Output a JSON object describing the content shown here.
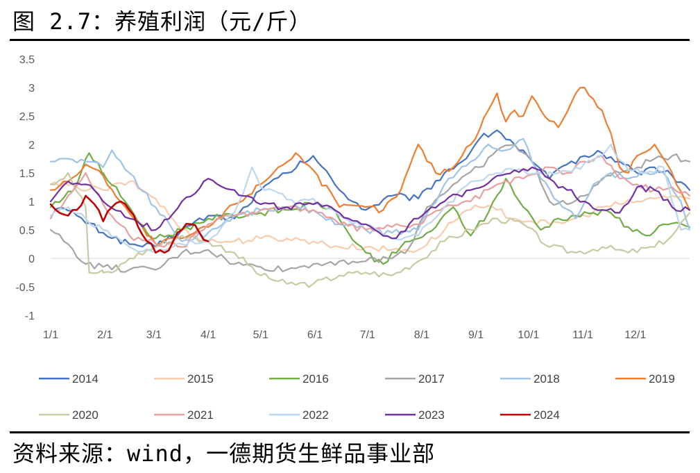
{
  "figure_title": "图 2.7：养殖利润（元/斤）",
  "source_note": "资料来源：wind，一德期货生鲜品事业部",
  "chart_data": {
    "type": "line",
    "title": "养殖利润（元/斤）",
    "xlabel": "",
    "ylabel": "",
    "ylim": [
      -1,
      3.5
    ],
    "yticks": [
      3.5,
      3,
      2.5,
      2,
      1.5,
      1,
      0.5,
      0,
      -0.5,
      -1
    ],
    "ytick_labels": [
      "3.5",
      "3",
      "2.5",
      "2",
      "1.5",
      "1",
      "0.5",
      "0",
      "-0.5",
      "-1"
    ],
    "xlim": [
      0,
      365
    ],
    "xticks": [
      0,
      31,
      59,
      90,
      120,
      151,
      181,
      212,
      243,
      273,
      304,
      334
    ],
    "xtick_labels": [
      "1/1",
      "2/1",
      "3/1",
      "4/1",
      "5/1",
      "6/1",
      "7/1",
      "8/1",
      "9/1",
      "10/1",
      "11/1",
      "12/1"
    ],
    "grid": false,
    "legend_position": "bottom",
    "series": [
      {
        "name": "2014",
        "color": "#4472C4",
        "x": [
          0,
          15,
          30,
          45,
          60,
          75,
          90,
          105,
          120,
          135,
          150,
          165,
          180,
          195,
          210,
          225,
          235,
          245,
          255,
          265,
          275,
          285,
          295,
          305,
          315,
          325,
          335,
          345,
          355,
          365
        ],
        "values": [
          0.95,
          0.75,
          0.45,
          0.25,
          0.2,
          0.5,
          0.75,
          0.7,
          1.2,
          1.5,
          1.8,
          1.2,
          0.85,
          1.1,
          1.05,
          1.5,
          1.7,
          2.1,
          2.25,
          2.0,
          1.7,
          1.4,
          1.65,
          1.8,
          1.85,
          1.7,
          1.5,
          1.6,
          1.45,
          1.2
        ]
      },
      {
        "name": "2015",
        "color": "#F8CBAD",
        "x": [
          0,
          15,
          30,
          45,
          60,
          75,
          90,
          105,
          120,
          135,
          150,
          165,
          180,
          195,
          210,
          225,
          235,
          245,
          255,
          265,
          275,
          285,
          295,
          305,
          315,
          325,
          335,
          345,
          355,
          365
        ],
        "values": [
          1.3,
          1.25,
          1.2,
          1.35,
          1.05,
          0.5,
          0.3,
          0.3,
          0.35,
          0.35,
          0.3,
          0.2,
          0.2,
          0.15,
          0.15,
          0.5,
          0.8,
          0.9,
          0.85,
          0.7,
          0.65,
          0.6,
          0.65,
          0.75,
          0.9,
          0.95,
          1.0,
          1.05,
          1.1,
          1.05
        ]
      },
      {
        "name": "2016",
        "color": "#70AD47",
        "x": [
          0,
          15,
          22,
          30,
          45,
          55,
          60,
          75,
          90,
          105,
          120,
          135,
          150,
          160,
          170,
          180,
          190,
          200,
          210,
          220,
          230,
          240,
          250,
          260,
          270,
          280,
          290,
          300,
          310,
          320,
          330,
          340,
          350,
          365
        ],
        "values": [
          0.9,
          1.3,
          1.85,
          1.5,
          0.9,
          0.45,
          0.35,
          0.5,
          0.7,
          0.75,
          0.8,
          0.85,
          0.95,
          0.9,
          0.45,
          0.1,
          -0.1,
          0.2,
          0.35,
          0.55,
          0.9,
          0.4,
          0.8,
          1.4,
          0.9,
          0.5,
          0.7,
          0.75,
          0.8,
          0.8,
          0.55,
          0.4,
          0.6,
          0.55
        ]
      },
      {
        "name": "2017",
        "color": "#A5A5A5",
        "x": [
          0,
          10,
          20,
          30,
          45,
          60,
          75,
          90,
          105,
          120,
          135,
          150,
          165,
          180,
          195,
          205,
          215,
          230,
          245,
          255,
          265,
          275,
          285,
          295,
          305,
          315,
          325,
          335,
          345,
          355,
          365
        ],
        "values": [
          0.5,
          0.25,
          -0.1,
          -0.15,
          -0.2,
          -0.2,
          0.1,
          0.15,
          -0.1,
          -0.15,
          -0.2,
          -0.1,
          -0.05,
          -0.05,
          0.0,
          0.2,
          0.9,
          1.3,
          1.6,
          1.9,
          2.0,
          1.7,
          1.0,
          0.95,
          1.1,
          1.4,
          1.5,
          1.6,
          1.75,
          1.8,
          1.7
        ]
      },
      {
        "name": "2018",
        "color": "#9DC3E6",
        "x": [
          0,
          10,
          20,
          30,
          35,
          45,
          60,
          75,
          90,
          105,
          120,
          135,
          150,
          165,
          180,
          195,
          210,
          225,
          240,
          250,
          260,
          270,
          280,
          290,
          300,
          310,
          320,
          330,
          340,
          350,
          360,
          365
        ],
        "values": [
          1.7,
          1.75,
          1.7,
          1.6,
          1.9,
          1.5,
          0.9,
          0.3,
          0.45,
          0.75,
          0.85,
          0.9,
          0.85,
          0.6,
          0.5,
          0.45,
          0.5,
          1.3,
          1.7,
          2.0,
          1.9,
          2.1,
          1.4,
          1.0,
          0.7,
          1.3,
          1.5,
          1.4,
          1.5,
          1.5,
          1.0,
          0.5
        ]
      },
      {
        "name": "2019",
        "color": "#ED7D31",
        "x": [
          0,
          10,
          20,
          30,
          45,
          60,
          75,
          90,
          105,
          120,
          130,
          140,
          150,
          165,
          180,
          190,
          200,
          210,
          220,
          230,
          240,
          250,
          255,
          260,
          265,
          270,
          275,
          280,
          290,
          300,
          305,
          310,
          315,
          320,
          325,
          330,
          335,
          345,
          355,
          365
        ],
        "values": [
          1.2,
          1.35,
          1.65,
          1.45,
          0.8,
          0.25,
          0.35,
          0.55,
          0.95,
          1.3,
          1.6,
          1.85,
          1.55,
          0.9,
          0.9,
          0.85,
          1.2,
          2.0,
          1.5,
          1.6,
          2.0,
          2.6,
          2.9,
          2.4,
          2.6,
          2.5,
          2.85,
          2.6,
          2.3,
          2.9,
          3.0,
          2.8,
          2.6,
          2.2,
          1.6,
          1.5,
          1.8,
          2.0,
          1.5,
          0.85
        ]
      },
      {
        "name": "2020",
        "color": "#C9C9A3",
        "x": [
          0,
          10,
          20,
          22,
          30,
          35,
          45,
          60,
          75,
          90,
          105,
          120,
          135,
          150,
          165,
          180,
          195,
          210,
          225,
          240,
          255,
          270,
          285,
          300,
          315,
          330,
          345,
          355,
          365
        ],
        "values": [
          1.3,
          1.5,
          0.9,
          -0.25,
          -0.25,
          -0.25,
          0.0,
          0.2,
          0.4,
          0.3,
          0.1,
          -0.3,
          -0.45,
          -0.45,
          -0.3,
          -0.25,
          -0.3,
          -0.05,
          0.3,
          0.5,
          0.7,
          0.6,
          0.2,
          0.1,
          0.2,
          0.1,
          0.2,
          0.4,
          0.8
        ]
      },
      {
        "name": "2021",
        "color": "#E6A0A0",
        "x": [
          0,
          10,
          20,
          30,
          45,
          60,
          75,
          90,
          105,
          120,
          135,
          150,
          165,
          180,
          195,
          210,
          225,
          240,
          255,
          270,
          285,
          295,
          305,
          315,
          325,
          335,
          345,
          355,
          365
        ],
        "values": [
          0.7,
          1.1,
          1.5,
          0.95,
          0.4,
          0.25,
          0.2,
          0.6,
          0.75,
          0.85,
          0.9,
          0.85,
          0.6,
          0.5,
          0.55,
          0.6,
          0.9,
          1.0,
          1.3,
          1.4,
          1.6,
          1.5,
          1.7,
          1.8,
          1.4,
          1.3,
          1.2,
          1.25,
          1.1
        ]
      },
      {
        "name": "2022",
        "color": "#BDD7EE",
        "x": [
          0,
          10,
          20,
          30,
          45,
          60,
          75,
          90,
          105,
          115,
          120,
          130,
          140,
          150,
          165,
          180,
          195,
          210,
          225,
          240,
          255,
          270,
          280,
          290,
          300,
          310,
          320,
          330,
          340,
          350,
          360,
          365
        ],
        "values": [
          0.75,
          0.9,
          0.7,
          0.5,
          0.2,
          0.1,
          0.25,
          0.3,
          0.8,
          1.6,
          1.25,
          1.15,
          0.95,
          1.05,
          0.75,
          0.6,
          0.35,
          0.4,
          0.9,
          1.35,
          1.5,
          1.55,
          1.5,
          1.5,
          1.6,
          1.7,
          2.0,
          1.55,
          1.5,
          1.6,
          0.5,
          0.5
        ]
      },
      {
        "name": "2023",
        "color": "#7030A0",
        "x": [
          0,
          10,
          20,
          30,
          45,
          60,
          75,
          90,
          105,
          120,
          135,
          150,
          165,
          180,
          195,
          210,
          225,
          240,
          255,
          265,
          275,
          285,
          295,
          305,
          315,
          325,
          335,
          345,
          355,
          365
        ],
        "values": [
          1.0,
          1.35,
          1.3,
          1.0,
          0.7,
          0.5,
          1.0,
          1.4,
          1.2,
          0.95,
          0.9,
          0.95,
          0.8,
          0.6,
          0.35,
          0.7,
          1.0,
          1.2,
          1.45,
          1.55,
          1.6,
          1.4,
          1.2,
          1.0,
          0.85,
          0.8,
          1.25,
          1.2,
          0.9,
          0.85
        ]
      },
      {
        "name": "2024",
        "color": "#C00000",
        "x": [
          0,
          5,
          10,
          15,
          20,
          25,
          30,
          35,
          40,
          45,
          50,
          55,
          60,
          65,
          70,
          75,
          80,
          85,
          90
        ],
        "values": [
          0.95,
          0.8,
          0.75,
          0.85,
          1.1,
          0.95,
          0.65,
          0.9,
          1.0,
          0.85,
          0.55,
          0.3,
          0.1,
          0.1,
          0.3,
          0.5,
          0.6,
          0.45,
          0.3
        ]
      }
    ]
  }
}
